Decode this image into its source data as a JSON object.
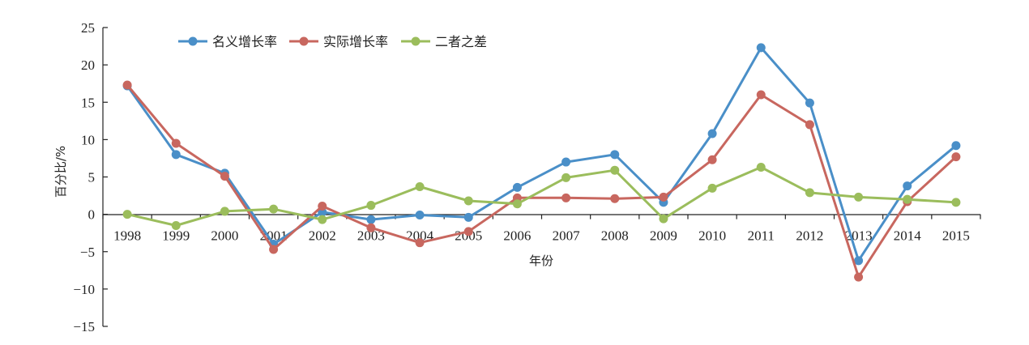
{
  "chart_data": {
    "type": "line",
    "title": "",
    "xlabel": "年份",
    "ylabel": "百分比/%",
    "ylim": [
      -15,
      25
    ],
    "yticks": [
      -15,
      -10,
      -5,
      0,
      5,
      10,
      15,
      20,
      25
    ],
    "ytick_labels": [
      "−15",
      "−10",
      "−5",
      "0",
      "5",
      "10",
      "15",
      "20",
      "25"
    ],
    "categories": [
      "1998",
      "1999",
      "2000",
      "2001",
      "2002",
      "2003",
      "2004",
      "2005",
      "2006",
      "2007",
      "2008",
      "2009",
      "2010",
      "2011",
      "2012",
      "2013",
      "2014",
      "2015"
    ],
    "grid": false,
    "legend_position": "top-left",
    "series": [
      {
        "name": "名义增长率",
        "color": "#4a8fc8",
        "values": [
          17.2,
          8.0,
          5.5,
          -4.0,
          0.3,
          -0.7,
          -0.1,
          -0.4,
          3.6,
          7.0,
          8.0,
          1.6,
          10.8,
          22.3,
          14.9,
          -6.2,
          3.8,
          9.2
        ]
      },
      {
        "name": "实际增长率",
        "color": "#c8675f",
        "values": [
          17.3,
          9.5,
          5.1,
          -4.7,
          1.1,
          -1.8,
          -3.8,
          -2.3,
          2.2,
          2.2,
          2.1,
          2.3,
          7.3,
          16.0,
          12.0,
          -8.4,
          1.7,
          7.7
        ]
      },
      {
        "name": "二者之差",
        "color": "#9bbd5c",
        "values": [
          0.0,
          -1.5,
          0.4,
          0.7,
          -0.7,
          1.2,
          3.7,
          1.8,
          1.4,
          4.9,
          5.9,
          -0.6,
          3.5,
          6.3,
          2.9,
          2.3,
          2.0,
          1.6
        ]
      }
    ]
  }
}
